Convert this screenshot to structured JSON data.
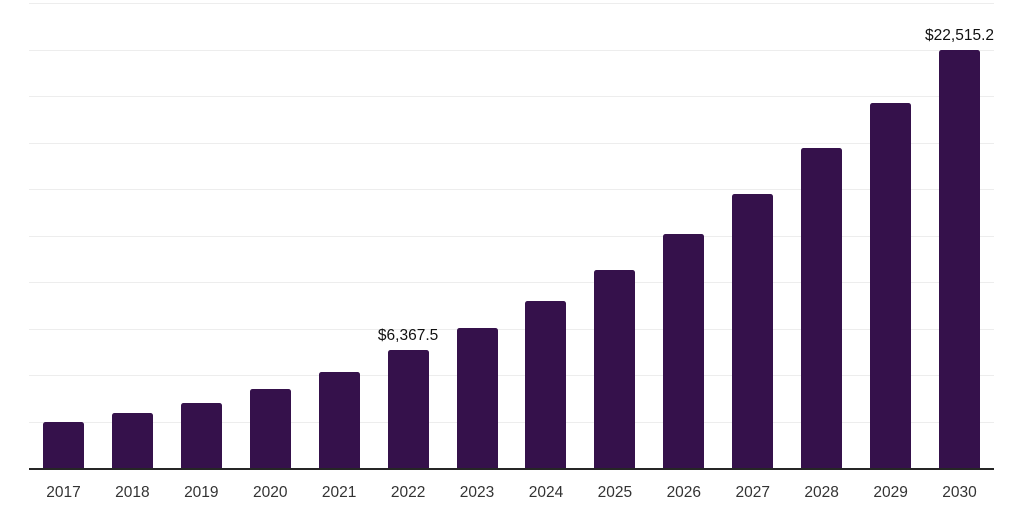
{
  "chart_data": {
    "type": "bar",
    "title": "",
    "xlabel": "",
    "ylabel": "",
    "categories": [
      "2017",
      "2018",
      "2019",
      "2020",
      "2021",
      "2022",
      "2023",
      "2024",
      "2025",
      "2026",
      "2027",
      "2028",
      "2029",
      "2030"
    ],
    "values": [
      2500,
      3000,
      3550,
      4300,
      5200,
      6367.5,
      7550,
      9000,
      10700,
      12600,
      14750,
      17250,
      19650,
      22515.2
    ],
    "value_labels": [
      "",
      "",
      "",
      "",
      "",
      "$6,367.5",
      "",
      "",
      "",
      "",
      "",
      "",
      "",
      "$22,515.2"
    ],
    "ylim": [
      0,
      25000
    ],
    "gridline_step": 2500,
    "grid": true,
    "legend": false,
    "colors": {
      "bar": "#35114B",
      "gridline": "#ededed",
      "axis": "#262626",
      "tick_label": "#333333",
      "value_label": "#111111",
      "background": "#ffffff"
    }
  }
}
